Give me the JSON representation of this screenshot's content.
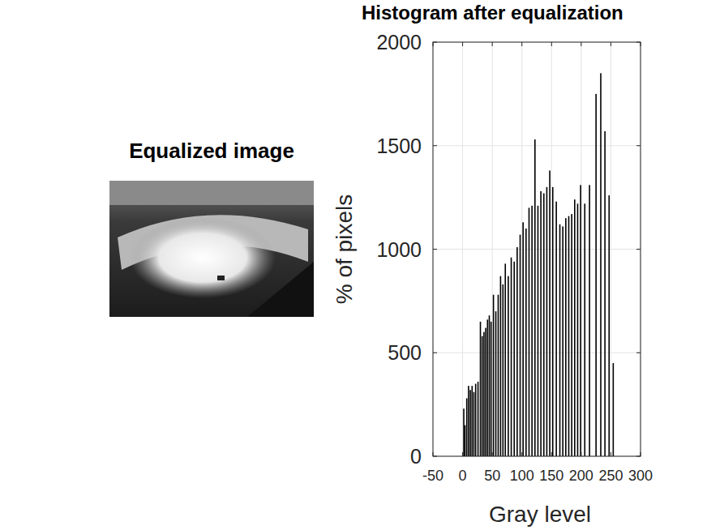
{
  "image": {
    "title": "Equalized image"
  },
  "chart_data": {
    "type": "bar",
    "title": "Histogram after equalization",
    "x_label": "Gray level",
    "y_label": "% of pixels",
    "x": [
      2,
      4,
      7,
      10,
      13,
      16,
      19,
      22,
      26,
      30,
      33,
      36,
      39,
      42,
      45,
      48,
      52,
      56,
      60,
      64,
      68,
      72,
      77,
      82,
      87,
      92,
      97,
      102,
      107,
      112,
      117,
      122,
      127,
      132,
      137,
      142,
      147,
      152,
      158,
      164,
      169,
      174,
      179,
      184,
      189,
      194,
      199,
      206,
      214,
      225,
      233,
      240,
      247,
      254
    ],
    "values": [
      230,
      150,
      280,
      340,
      320,
      340,
      310,
      350,
      360,
      650,
      580,
      600,
      620,
      660,
      680,
      650,
      780,
      700,
      780,
      870,
      830,
      930,
      870,
      960,
      940,
      1010,
      1070,
      1130,
      1100,
      1200,
      1210,
      1530,
      1210,
      1280,
      1270,
      1300,
      1380,
      1300,
      1230,
      1120,
      1110,
      1150,
      1160,
      1170,
      1240,
      1220,
      1310,
      1220,
      1310,
      1750,
      1850,
      1570,
      1260,
      450
    ],
    "color": "#000000",
    "xlim": [
      -50,
      300
    ],
    "xticks": [
      -50,
      0,
      50,
      100,
      150,
      200,
      250,
      300
    ],
    "ylim": [
      0,
      2000
    ],
    "yticks": [
      0,
      500,
      1000,
      1500,
      2000
    ],
    "grid": true
  }
}
